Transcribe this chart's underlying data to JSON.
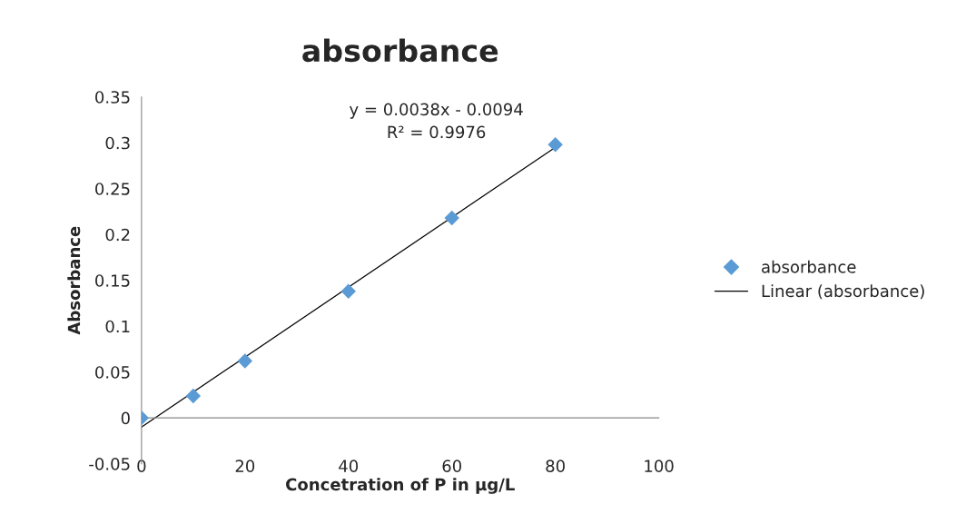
{
  "chart_data": {
    "type": "scatter",
    "title": "absorbance",
    "xlabel": "Concetration of P in µg/L",
    "ylabel": "Absorbance",
    "series": [
      {
        "name": "absorbance",
        "color": "#5b9bd5",
        "marker": "diamond",
        "x": [
          0,
          10,
          20,
          40,
          60,
          80
        ],
        "values": [
          0.0,
          0.024,
          0.062,
          0.138,
          0.218,
          0.298
        ]
      },
      {
        "name": "Linear (absorbance)",
        "type": "line",
        "color": "#000000",
        "marker": "none",
        "line_style": "solid",
        "x": [
          0,
          80
        ],
        "values": [
          -0.01,
          0.295
        ]
      }
    ],
    "annotations": [
      "y = 0.0038x - 0.0094",
      "R² = 0.9976"
    ],
    "xlim": [
      0,
      100
    ],
    "xticks": [
      0,
      20,
      40,
      60,
      80,
      100
    ],
    "ylim": [
      -0.05,
      0.35
    ],
    "yticks": [
      -0.05,
      0,
      0.05,
      0.1,
      0.15,
      0.2,
      0.25,
      0.3,
      0.35
    ],
    "grid": false,
    "legend": "right"
  }
}
